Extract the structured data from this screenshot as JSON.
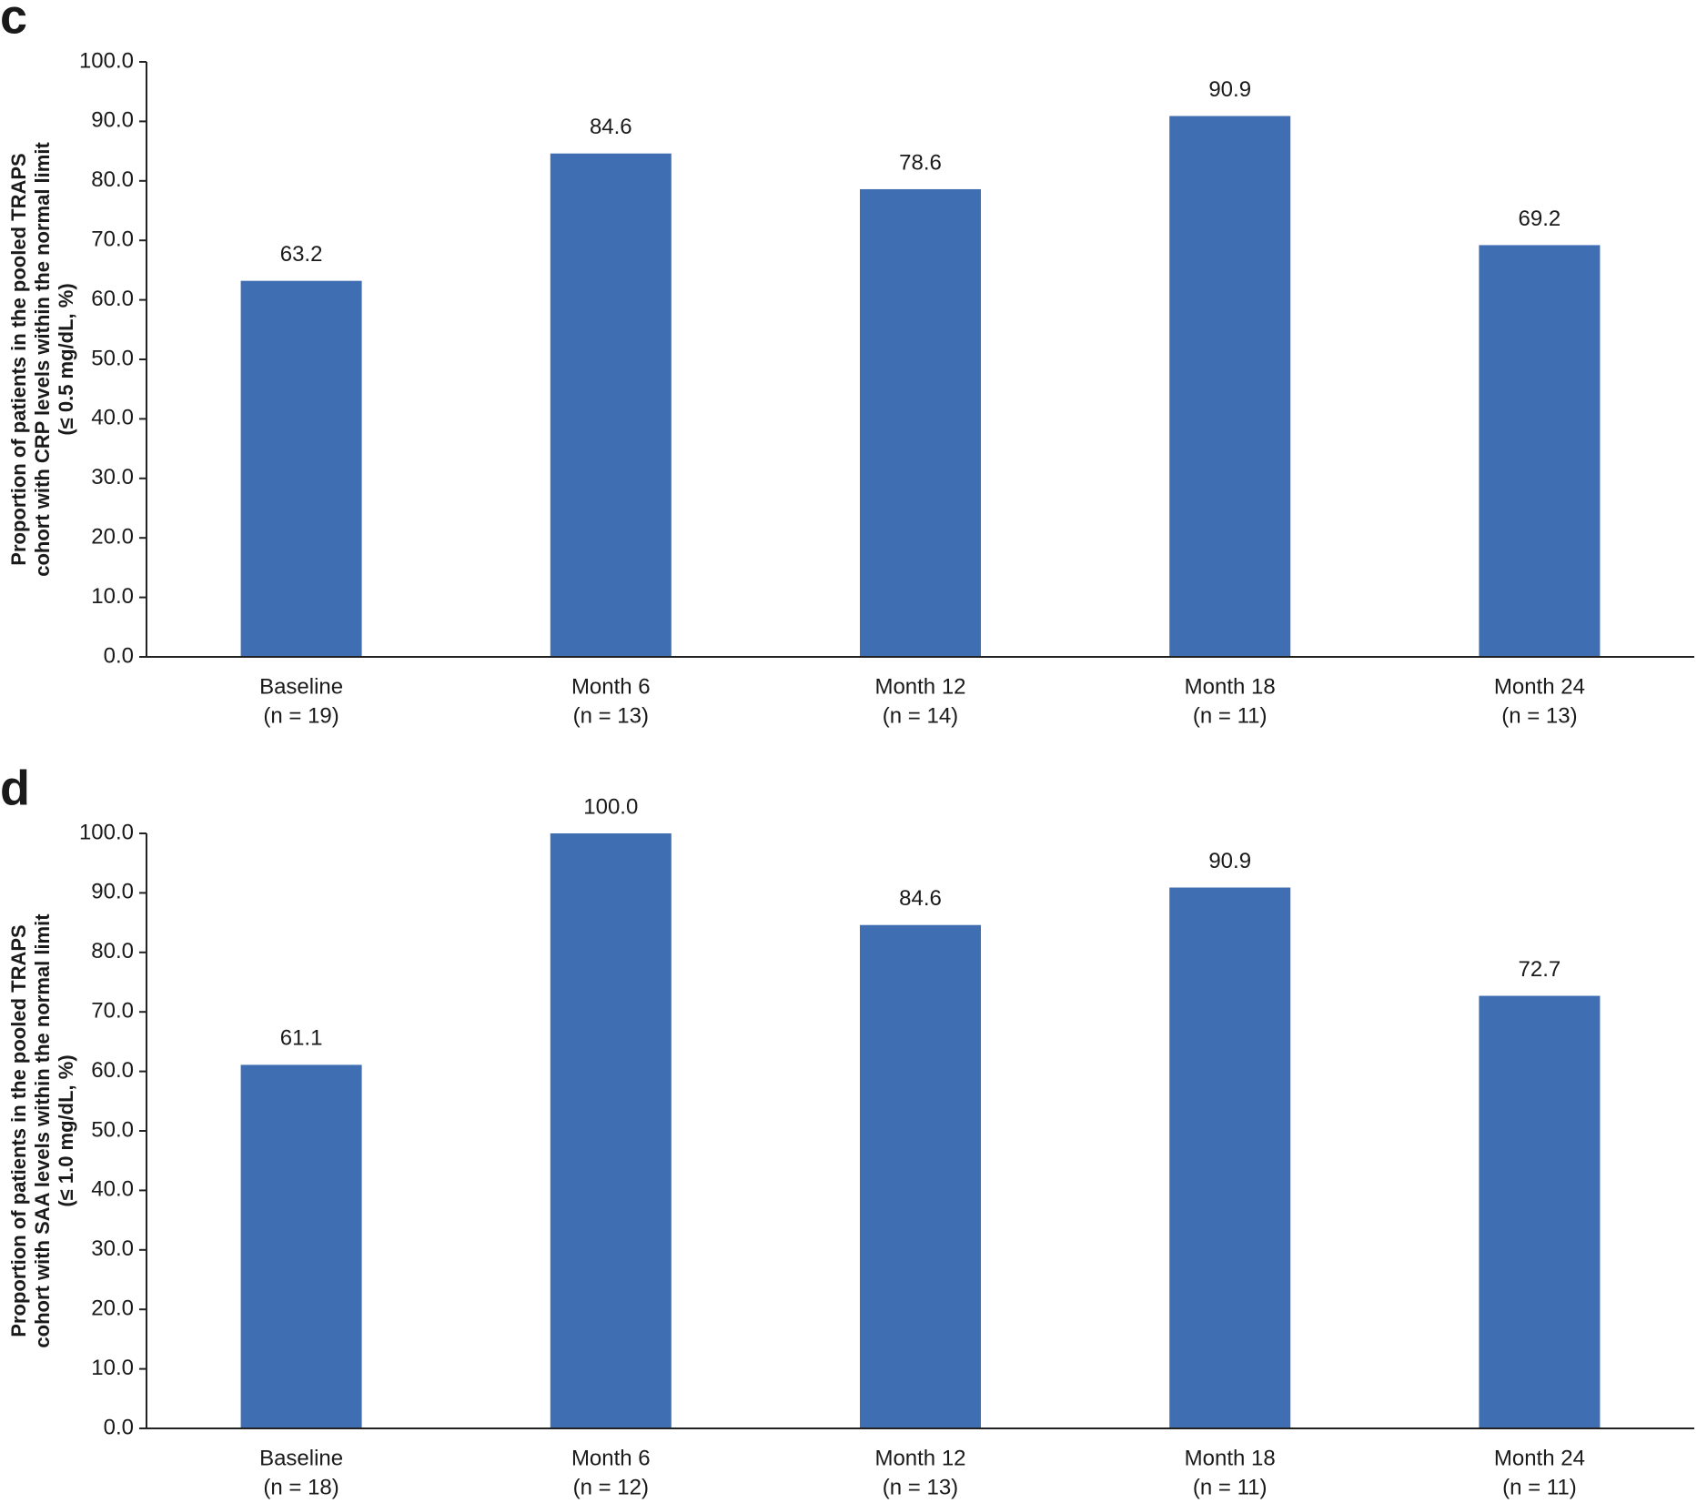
{
  "chart_data": [
    {
      "type": "bar",
      "panel": "c",
      "ylabel": [
        "Proportion of patients in the pooled TRAPS",
        "cohort with CRP levels within the normal limit",
        "(≤ 0.5 mg/dL, %)"
      ],
      "categories": [
        "Baseline",
        "Month 6",
        "Month 12",
        "Month 18",
        "Month 24"
      ],
      "category_counts": [
        "(n = 19)",
        "(n = 13)",
        "(n = 14)",
        "(n = 11)",
        "(n = 13)"
      ],
      "values": [
        63.2,
        84.6,
        78.6,
        90.9,
        69.2
      ],
      "color": "#3f6fb2",
      "ylim": [
        0,
        100
      ],
      "yticks": [
        {
          "value": 0,
          "label": "0.0"
        },
        {
          "value": 10,
          "label": "10.0"
        },
        {
          "value": 20,
          "label": "20.0"
        },
        {
          "value": 30,
          "label": "30.0"
        },
        {
          "value": 40,
          "label": "40.0"
        },
        {
          "value": 50,
          "label": "50.0"
        },
        {
          "value": 60,
          "label": "60.0"
        },
        {
          "value": 70,
          "label": "70.0"
        },
        {
          "value": 80,
          "label": "80.0"
        },
        {
          "value": 90,
          "label": "90.0"
        },
        {
          "value": 100,
          "label": "100.0"
        }
      ]
    },
    {
      "type": "bar",
      "panel": "d",
      "ylabel": [
        "Proportion of patients in the pooled TRAPS",
        "cohort with SAA levels within the normal limit",
        "(≤ 1.0 mg/dL, %)"
      ],
      "categories": [
        "Baseline",
        "Month 6",
        "Month 12",
        "Month 18",
        "Month 24"
      ],
      "category_counts": [
        "(n = 18)",
        "(n = 12)",
        "(n = 13)",
        "(n = 11)",
        "(n = 11)"
      ],
      "values": [
        61.1,
        100,
        84.6,
        90.9,
        72.7
      ],
      "value_labels": [
        "61.1",
        "100.0",
        "84.6",
        "90.9",
        "72.7"
      ],
      "color": "#3f6fb2",
      "ylim": [
        0,
        100
      ],
      "yticks": [
        {
          "value": 0,
          "label": "0.0"
        },
        {
          "value": 10,
          "label": "10.0"
        },
        {
          "value": 20,
          "label": "20.0"
        },
        {
          "value": 30,
          "label": "30.0"
        },
        {
          "value": 40,
          "label": "40.0"
        },
        {
          "value": 50,
          "label": "50.0"
        },
        {
          "value": 60,
          "label": "60.0"
        },
        {
          "value": 70,
          "label": "70.0"
        },
        {
          "value": 80,
          "label": "80.0"
        },
        {
          "value": 90,
          "label": "90.0"
        },
        {
          "value": 100,
          "label": "100.0"
        }
      ]
    }
  ]
}
